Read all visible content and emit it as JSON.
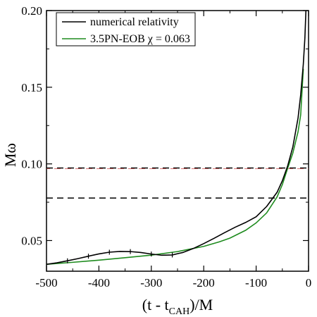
{
  "chart_data": {
    "type": "line",
    "xlabel": "(t - t",
    "xlabel_sub": "CAH",
    "xlabel_tail": ")/M",
    "ylabel": "Mω",
    "xlim": [
      -500,
      0
    ],
    "ylim": [
      0.03,
      0.2
    ],
    "xticks": [
      -500,
      -400,
      -300,
      -200,
      -100,
      0
    ],
    "xtick_labels": [
      "-500",
      "-400",
      "-300",
      "-200",
      "-100",
      "0"
    ],
    "yticks": [
      0.05,
      0.1,
      0.15,
      0.2
    ],
    "ytick_labels": [
      "0.05",
      "0.10",
      "0.15",
      "0.20"
    ],
    "grid": false,
    "legend": "top-left",
    "series": [
      {
        "name": "numerical relativity",
        "color": "#000000",
        "x": [
          -500,
          -480,
          -460,
          -440,
          -420,
          -400,
          -380,
          -360,
          -340,
          -320,
          -300,
          -280,
          -260,
          -240,
          -220,
          -200,
          -180,
          -160,
          -140,
          -120,
          -100,
          -80,
          -60,
          -50,
          -40,
          -30,
          -20,
          -15,
          -10,
          -7,
          -5
        ],
        "y": [
          0.0345,
          0.0355,
          0.0368,
          0.0382,
          0.0398,
          0.0413,
          0.0424,
          0.0429,
          0.0428,
          0.0422,
          0.0412,
          0.0404,
          0.0406,
          0.0422,
          0.0448,
          0.048,
          0.0515,
          0.0552,
          0.0587,
          0.0618,
          0.0655,
          0.0722,
          0.0815,
          0.089,
          0.0985,
          0.111,
          0.13,
          0.145,
          0.165,
          0.182,
          0.2
        ]
      },
      {
        "name": "3.5PN-EOB χ = 0.063",
        "color": "#1e8b1e",
        "x": [
          -500,
          -450,
          -400,
          -350,
          -300,
          -250,
          -200,
          -170,
          -150,
          -120,
          -100,
          -80,
          -60,
          -50,
          -40,
          -30,
          -20,
          -15,
          -10
        ],
        "y": [
          0.0345,
          0.0358,
          0.0372,
          0.0388,
          0.0405,
          0.0428,
          0.0462,
          0.0492,
          0.0516,
          0.0567,
          0.0615,
          0.068,
          0.0785,
          0.0865,
          0.097,
          0.107,
          0.121,
          0.132,
          0.162
        ]
      }
    ],
    "markers": {
      "series": "numerical relativity",
      "x": [
        -460,
        -420,
        -380,
        -340,
        -300,
        -260
      ]
    },
    "reference_lines": [
      {
        "y": 0.0973,
        "style": "dashed",
        "color": "#000000"
      },
      {
        "y": 0.0777,
        "style": "dashed",
        "color": "#000000"
      }
    ],
    "reference_lines_overlay": [
      {
        "y": 0.0973,
        "style": "dashed",
        "color": "#cc4444"
      }
    ]
  }
}
